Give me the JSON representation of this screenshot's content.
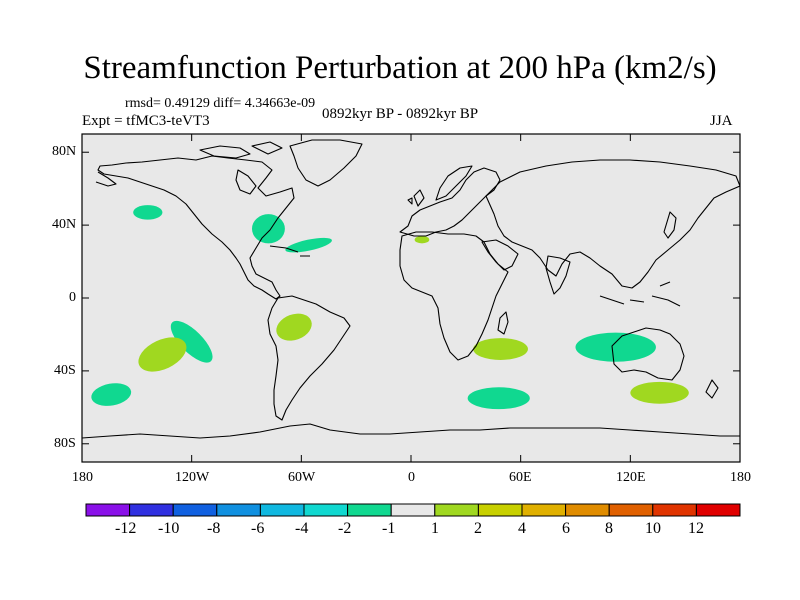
{
  "chart_data": {
    "type": "map",
    "title": "Streamfunction Perturbation at 200 hPa (km2/s)",
    "stats": "rmsd= 0.49129 diff= 4.34663e-09",
    "experiment": "Expt = tfMC3-teVT3",
    "period": "0892kyr BP - 0892kyr BP",
    "season": "JJA",
    "projection": "cylindrical equidistant",
    "xlim": [
      -180,
      180
    ],
    "ylim": [
      -90,
      90
    ],
    "x_ticks": [
      {
        "value": -180,
        "label": "180"
      },
      {
        "value": -120,
        "label": "120W"
      },
      {
        "value": -60,
        "label": "60W"
      },
      {
        "value": 0,
        "label": "0"
      },
      {
        "value": 60,
        "label": "60E"
      },
      {
        "value": 120,
        "label": "120E"
      },
      {
        "value": 180,
        "label": "180"
      }
    ],
    "y_ticks": [
      {
        "value": 80,
        "label": "80N"
      },
      {
        "value": 40,
        "label": "40N"
      },
      {
        "value": 0,
        "label": "0"
      },
      {
        "value": -40,
        "label": "40S"
      },
      {
        "value": -80,
        "label": "80S"
      }
    ],
    "background_color": "#e8e8e8",
    "anomalies": [
      {
        "lon": -144,
        "lat": 47,
        "rx": 8,
        "ry": 4,
        "rot": 0,
        "level": -2,
        "color": "#10d890"
      },
      {
        "lon": -78,
        "lat": 38,
        "rx": 9,
        "ry": 8,
        "rot": 0,
        "level": -2,
        "color": "#10d890"
      },
      {
        "lon": -56,
        "lat": 29,
        "rx": 13,
        "ry": 3,
        "rot": -12,
        "level": -2,
        "color": "#10d890"
      },
      {
        "lon": 6,
        "lat": 32,
        "rx": 4,
        "ry": 2,
        "rot": 0,
        "level": 2,
        "color": "#a0d820"
      },
      {
        "lon": -120,
        "lat": -24,
        "rx": 15,
        "ry": 6,
        "rot": 45,
        "level": -2,
        "color": "#10d890"
      },
      {
        "lon": -64,
        "lat": -16,
        "rx": 10,
        "ry": 7,
        "rot": -20,
        "level": 2,
        "color": "#a0d820"
      },
      {
        "lon": -136,
        "lat": -31,
        "rx": 14,
        "ry": 8,
        "rot": -25,
        "level": 2,
        "color": "#a0d820"
      },
      {
        "lon": -164,
        "lat": -53,
        "rx": 11,
        "ry": 6,
        "rot": -10,
        "level": -2,
        "color": "#10d890"
      },
      {
        "lon": 49,
        "lat": -28,
        "rx": 15,
        "ry": 6,
        "rot": 0,
        "level": 2,
        "color": "#a0d820"
      },
      {
        "lon": 48,
        "lat": -55,
        "rx": 17,
        "ry": 6,
        "rot": 0,
        "level": -2,
        "color": "#10d890"
      },
      {
        "lon": 112,
        "lat": -27,
        "rx": 22,
        "ry": 8,
        "rot": 0,
        "level": -2,
        "color": "#10d890"
      },
      {
        "lon": 136,
        "lat": -52,
        "rx": 16,
        "ry": 6,
        "rot": 0,
        "level": 2,
        "color": "#a0d820"
      }
    ],
    "colorbar": {
      "colors": [
        "#8a10e8",
        "#3030e0",
        "#1060e0",
        "#1090e0",
        "#10b8e0",
        "#10d8d0",
        "#10d890",
        "#e8e8e8",
        "#a0d820",
        "#c8d000",
        "#e0b000",
        "#e08c00",
        "#e06000",
        "#e03400",
        "#e00000"
      ],
      "labels": [
        "-12",
        "-10",
        "-8",
        "-6",
        "-4",
        "-2",
        "-1",
        "1",
        "2",
        "4",
        "6",
        "8",
        "10",
        "12"
      ]
    }
  }
}
